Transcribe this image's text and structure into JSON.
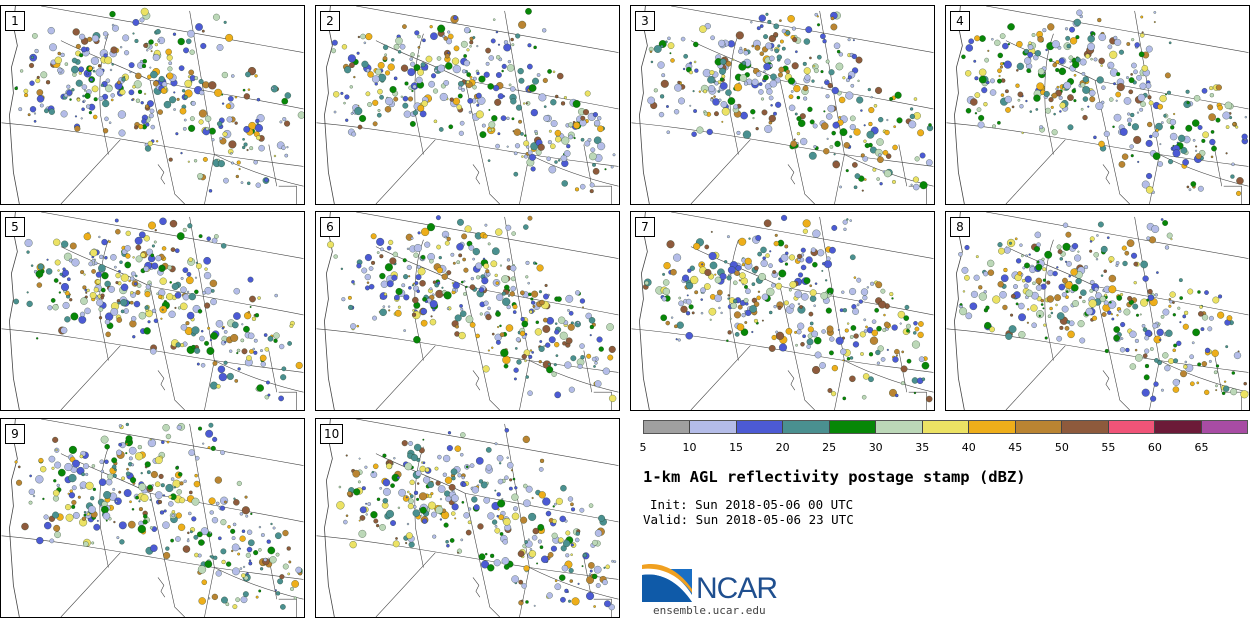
{
  "panels": [
    {
      "label": "1"
    },
    {
      "label": "2"
    },
    {
      "label": "3"
    },
    {
      "label": "4"
    },
    {
      "label": "5"
    },
    {
      "label": "6"
    },
    {
      "label": "7"
    },
    {
      "label": "8"
    },
    {
      "label": "9"
    },
    {
      "label": "10"
    }
  ],
  "colorbar": {
    "ticks": [
      "5",
      "10",
      "15",
      "20",
      "25",
      "30",
      "35",
      "40",
      "45",
      "50",
      "55",
      "60",
      "65"
    ],
    "colors": [
      "#a0a0a0",
      "#b4bce8",
      "#4c5ad4",
      "#4a9090",
      "#078707",
      "#bcd8b8",
      "#ece264",
      "#eeae1a",
      "#ba8432",
      "#8e5a3c",
      "#f05478",
      "#6c1a38",
      "#a84ca4"
    ]
  },
  "title": "1-km AGL reflectivity postage stamp (dBZ)",
  "init": "Init: Sun 2018-05-06 00 UTC",
  "valid": "Valid: Sun 2018-05-06 23 UTC",
  "logo": {
    "name": "NCAR",
    "url": "ensemble.ucar.edu",
    "icon": "ncar-logo-icon"
  }
}
